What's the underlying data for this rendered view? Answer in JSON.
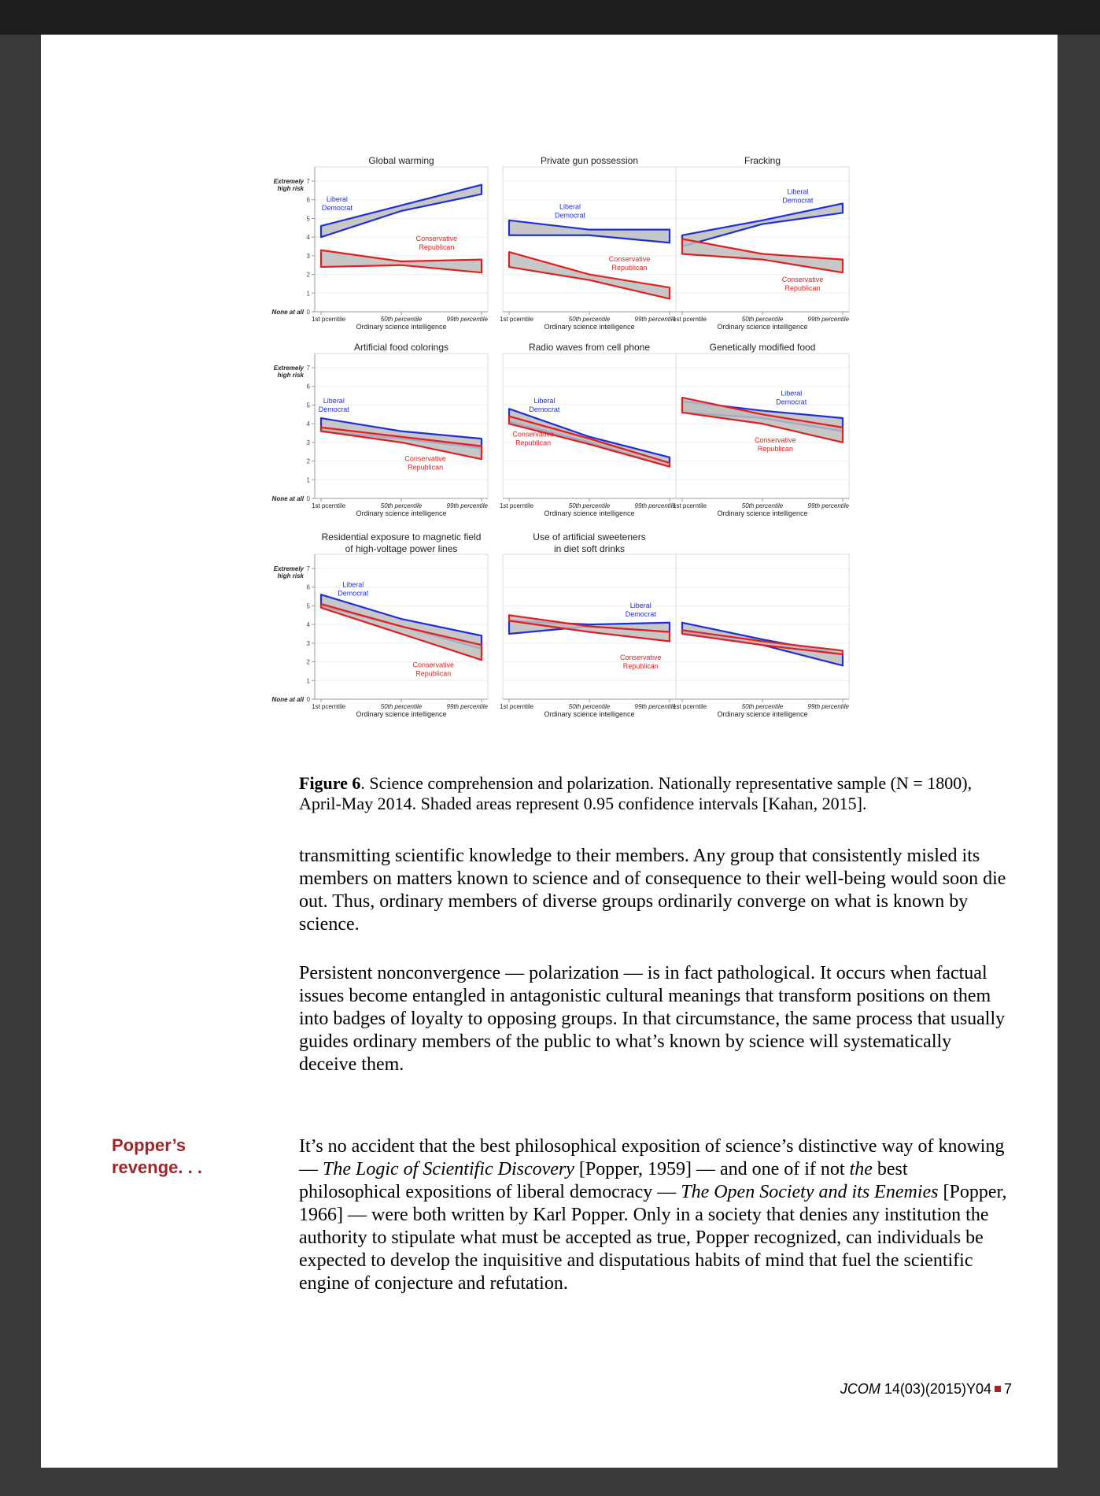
{
  "chart_data": [
    {
      "type": "area",
      "title": "Global warming",
      "xlabel": "Ordinary science intelligence",
      "xticks": [
        "1st pcerntile",
        "50th percentile",
        "99th percentile"
      ],
      "ylabel_top": "Extremely high risk",
      "ylabel_bottom": "None at all",
      "yticks": [
        0,
        1,
        2,
        3,
        4,
        5,
        6,
        7
      ],
      "ylim": [
        0,
        7
      ],
      "x": [
        0,
        0.5,
        1
      ],
      "series": [
        {
          "name": "Liberal Democrat",
          "color": "#1f2fd6",
          "upper": [
            4.6,
            5.7,
            6.8
          ],
          "lower": [
            4.0,
            5.4,
            6.3
          ],
          "label_pos": [
            0.1,
            5.9
          ]
        },
        {
          "name": "Conservative Republican",
          "color": "#e01f1f",
          "upper": [
            3.3,
            2.7,
            2.8
          ],
          "lower": [
            2.4,
            2.5,
            2.1
          ],
          "label_pos": [
            0.72,
            3.8
          ]
        }
      ]
    },
    {
      "type": "area",
      "title": "Private gun possession",
      "xlabel": "Ordinary science intelligence",
      "xticks": [
        "1st pcerntile",
        "50th percentile",
        "99th percentile"
      ],
      "yticks": [
        0,
        1,
        2,
        3,
        4,
        5,
        6,
        7
      ],
      "ylim": [
        0,
        7
      ],
      "x": [
        0,
        0.5,
        1
      ],
      "series": [
        {
          "name": "Liberal Democrat",
          "color": "#1f2fd6",
          "upper": [
            4.9,
            4.4,
            4.4
          ],
          "lower": [
            4.1,
            4.1,
            3.7
          ],
          "label_pos": [
            0.38,
            5.5
          ]
        },
        {
          "name": "Conservative Republican",
          "color": "#e01f1f",
          "upper": [
            3.2,
            2.0,
            1.3
          ],
          "lower": [
            2.4,
            1.7,
            0.7
          ],
          "label_pos": [
            0.75,
            2.7
          ]
        }
      ]
    },
    {
      "type": "area",
      "title": "Fracking",
      "xlabel": "Ordinary science intelligence",
      "xticks": [
        "1st pcerntile",
        "50th percentile",
        "99th percentile"
      ],
      "yticks": [
        0,
        1,
        2,
        3,
        4,
        5,
        6,
        7
      ],
      "ylim": [
        0,
        7
      ],
      "x": [
        0,
        0.5,
        1
      ],
      "series": [
        {
          "name": "Liberal Democrat",
          "color": "#1f2fd6",
          "upper": [
            4.1,
            4.9,
            5.8
          ],
          "lower": [
            3.5,
            4.7,
            5.3
          ],
          "label_pos": [
            0.72,
            6.3
          ]
        },
        {
          "name": "Conservative Republican",
          "color": "#e01f1f",
          "upper": [
            3.9,
            3.1,
            2.8
          ],
          "lower": [
            3.1,
            2.8,
            2.1
          ],
          "label_pos": [
            0.75,
            1.6
          ]
        }
      ]
    },
    {
      "type": "area",
      "title": "Artificial food colorings",
      "xlabel": "Ordinary science intelligence",
      "xticks": [
        "1st pcerntile",
        "50th percentile",
        "99th percentile"
      ],
      "ylabel_top": "Extremely high risk",
      "ylabel_bottom": "None at all",
      "yticks": [
        0,
        1,
        2,
        3,
        4,
        5,
        6,
        7
      ],
      "ylim": [
        0,
        7
      ],
      "x": [
        0,
        0.5,
        1
      ],
      "series": [
        {
          "name": "Liberal Democrat",
          "color": "#1f2fd6",
          "upper": [
            4.3,
            3.6,
            3.2
          ],
          "lower": [
            3.6,
            3.2,
            2.7
          ],
          "label_pos": [
            0.08,
            5.1
          ]
        },
        {
          "name": "Conservative Republican",
          "color": "#e01f1f",
          "upper": [
            3.8,
            3.3,
            2.8
          ],
          "lower": [
            3.6,
            3.0,
            2.1
          ],
          "label_pos": [
            0.65,
            2.0
          ]
        }
      ]
    },
    {
      "type": "area",
      "title": "Radio waves from cell phone",
      "xlabel": "Ordinary science intelligence",
      "xticks": [
        "1st pcerntile",
        "50th percentile",
        "99th percentile"
      ],
      "yticks": [
        0,
        1,
        2,
        3,
        4,
        5,
        6,
        7
      ],
      "ylim": [
        0,
        7
      ],
      "x": [
        0,
        0.5,
        1
      ],
      "series": [
        {
          "name": "Liberal Democrat",
          "color": "#1f2fd6",
          "upper": [
            4.8,
            3.3,
            2.2
          ],
          "lower": [
            4.1,
            3.0,
            1.7
          ],
          "label_pos": [
            0.22,
            5.1
          ]
        },
        {
          "name": "Conservative Republican",
          "color": "#e01f1f",
          "upper": [
            4.4,
            3.2,
            1.9
          ],
          "lower": [
            4.0,
            2.9,
            1.7
          ],
          "label_pos": [
            0.15,
            3.3
          ]
        }
      ]
    },
    {
      "type": "area",
      "title": "Genetically modified food",
      "xlabel": "Ordinary science intelligence",
      "xticks": [
        "1st pcerntile",
        "50th percentile",
        "99th percentile"
      ],
      "yticks": [
        0,
        1,
        2,
        3,
        4,
        5,
        6,
        7
      ],
      "ylim": [
        0,
        7
      ],
      "x": [
        0,
        0.5,
        1
      ],
      "series": [
        {
          "name": "Liberal Democrat",
          "color": "#1f2fd6",
          "upper": [
            5.2,
            4.7,
            4.3
          ],
          "lower": [
            4.6,
            4.3,
            3.6
          ],
          "label_pos": [
            0.68,
            5.5
          ]
        },
        {
          "name": "Conservative Republican",
          "color": "#e01f1f",
          "upper": [
            5.4,
            4.5,
            3.8
          ],
          "lower": [
            4.6,
            4.0,
            3.0
          ],
          "label_pos": [
            0.58,
            3.0
          ]
        }
      ]
    },
    {
      "type": "area",
      "title": "Residential exposure to magnetic field of high-voltage power lines",
      "xlabel": "Ordinary science intelligence",
      "xticks": [
        "1st pcerntile",
        "50th percentile",
        "99th percentile"
      ],
      "ylabel_top": "Extremely high risk",
      "ylabel_bottom": "None at all",
      "yticks": [
        0,
        1,
        2,
        3,
        4,
        5,
        6,
        7
      ],
      "ylim": [
        0,
        7
      ],
      "x": [
        0,
        0.5,
        1
      ],
      "series": [
        {
          "name": "Liberal Democrat",
          "color": "#1f2fd6",
          "upper": [
            5.6,
            4.3,
            3.4
          ],
          "lower": [
            5.0,
            3.9,
            2.7
          ],
          "label_pos": [
            0.2,
            6.0
          ]
        },
        {
          "name": "Conservative Republican",
          "color": "#e01f1f",
          "upper": [
            5.1,
            3.9,
            2.9
          ],
          "lower": [
            4.9,
            3.5,
            2.1
          ],
          "label_pos": [
            0.7,
            1.7
          ]
        }
      ]
    },
    {
      "type": "area",
      "title": "Use of artificial sweeteners in diet soft drinks",
      "xlabel": "Ordinary science intelligence",
      "xticks": [
        "1st pcerntile",
        "50th percentile",
        "99th percentile"
      ],
      "yticks": [
        0,
        1,
        2,
        3,
        4,
        5,
        6,
        7
      ],
      "ylim": [
        0,
        7
      ],
      "x": [
        0,
        0.5,
        1
      ],
      "series": [
        {
          "name": "Liberal Democrat",
          "color": "#1f2fd6",
          "upper": [
            4.2,
            4.0,
            4.1
          ],
          "lower": [
            3.5,
            3.9,
            3.6
          ],
          "label_pos": [
            0.82,
            4.9
          ]
        },
        {
          "name": "Conservative Republican",
          "color": "#e01f1f",
          "upper": [
            4.5,
            3.9,
            3.6
          ],
          "lower": [
            4.2,
            3.6,
            3.1
          ],
          "label_pos": [
            0.82,
            2.1
          ]
        }
      ]
    },
    {
      "type": "area",
      "title": "",
      "xlabel": "Ordinary science intelligence",
      "xticks": [
        "1st pcerntile",
        "50th percentile",
        "99th percentile"
      ],
      "yticks": [
        0,
        1,
        2,
        3,
        4,
        5,
        6,
        7
      ],
      "ylim": [
        0,
        7
      ],
      "x": [
        0,
        0.5,
        1
      ],
      "series": [
        {
          "name": "",
          "color": "#1f2fd6",
          "upper": [
            4.1,
            3.2,
            2.4
          ],
          "lower": [
            3.6,
            2.9,
            1.8
          ],
          "label_pos": null
        },
        {
          "name": "",
          "color": "#e01f1f",
          "upper": [
            3.7,
            3.1,
            2.6
          ],
          "lower": [
            3.5,
            2.9,
            2.4
          ],
          "label_pos": null
        }
      ]
    }
  ],
  "caption": {
    "label": "Figure 6",
    "text": ". Science comprehension and polarization. Nationally representative sample (N = 1800), April-May 2014. Shaded areas represent 0.95 confidence intervals [Kahan, 2015]."
  },
  "body": {
    "para1": "transmitting scientific knowledge to their members. Any group that consistently misled its members on matters known to science and of consequence to their well-being would soon die out. Thus, ordinary members of diverse groups ordinarily converge on what is known by science.",
    "para2": "Persistent nonconvergence — polarization — is in fact pathological. It occurs when factual issues become entangled in antagonistic cultural meanings that transform positions on them into badges of loyalty to opposing groups. In that circumstance, the same process that usually guides ordinary members of the public to what’s known by science will systematically deceive them.",
    "para3": {
      "t1": "It’s no accident that the best philosophical exposition of science’s distinctive way of knowing — ",
      "i1": "The Logic of Scientific Discovery",
      "t2": " [Popper, 1959] — and one of if not ",
      "i2": "the",
      "t3": " best philosophical expositions of liberal democracy — ",
      "i3": "The Open Society and its Enemies",
      "t4": " [Popper, 1966] — were both written by Karl Popper. Only in a society that denies any institution the authority to stipulate what must be accepted as true, Popper recognized, can individuals be expected to develop the inquisitive and disputatious habits of mind that fuel the scientific engine of conjecture and refutation."
    }
  },
  "sidenote": {
    "line1": "Popper’s",
    "line2": "revenge. . ."
  },
  "footer": {
    "journal": "JCOM",
    "ref": "14(03)(2015)Y04",
    "page": "7"
  }
}
